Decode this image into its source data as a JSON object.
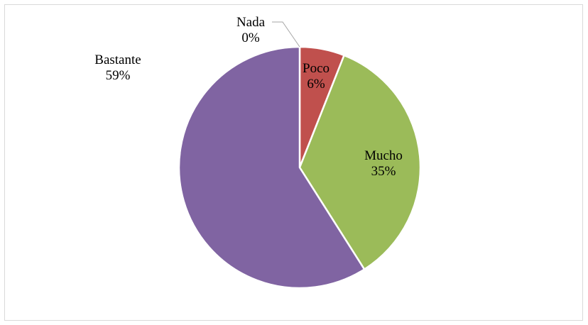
{
  "chart_data": {
    "type": "pie",
    "title": "",
    "categories": [
      "Nada",
      "Poco",
      "Mucho",
      "Bastante"
    ],
    "values": [
      0,
      6,
      35,
      59
    ],
    "value_labels": [
      "0%",
      "6%",
      "35%",
      "59%"
    ],
    "colors": [
      "#4f81bd",
      "#c0504d",
      "#9bbb59",
      "#8064a2"
    ],
    "start_angle_deg": 0,
    "direction": "clockwise",
    "legend": "none",
    "data_labels": "category and percentage"
  }
}
